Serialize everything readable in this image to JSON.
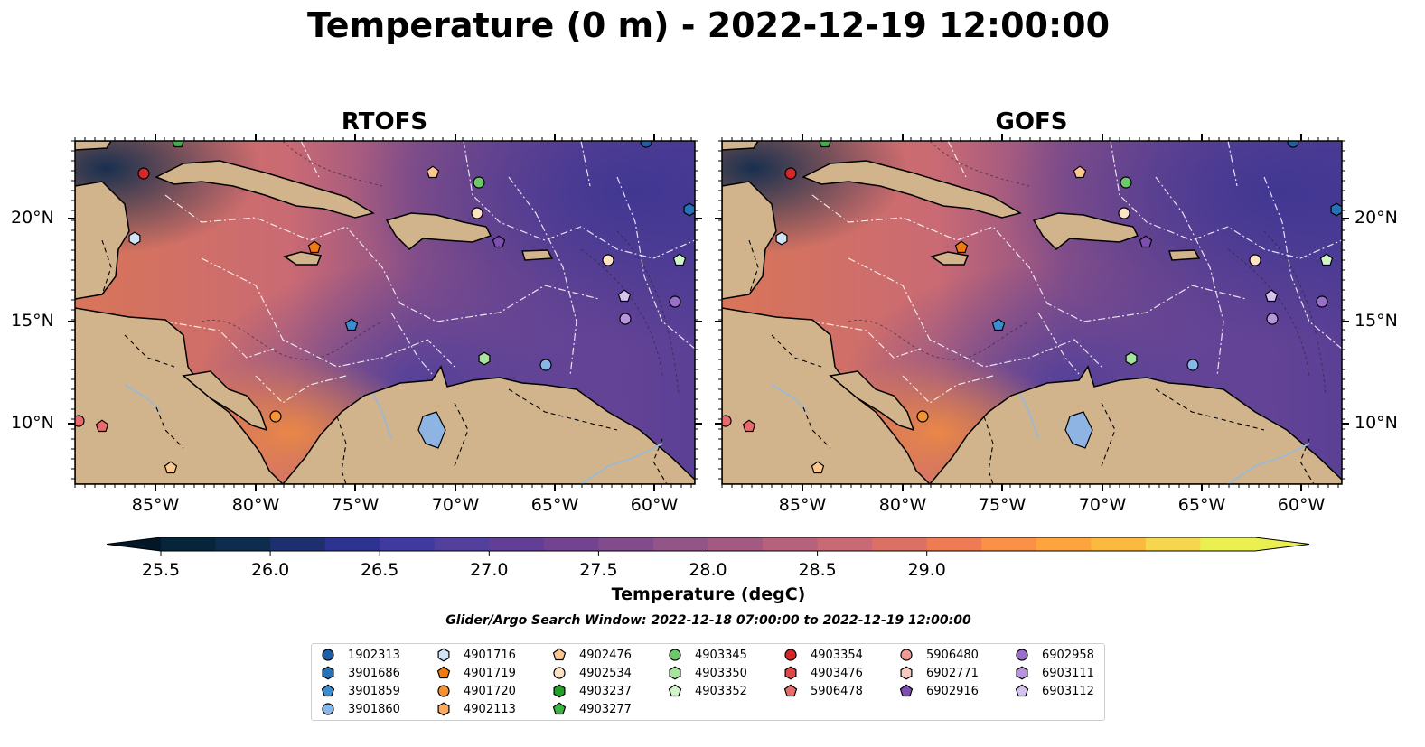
{
  "title": "Temperature (0 m) - 2022-12-19 12:00:00",
  "panels": [
    {
      "title": "RTOFS"
    },
    {
      "title": "GOFS"
    }
  ],
  "axes": {
    "x_ticks": [
      "85°W",
      "80°W",
      "75°W",
      "70°W",
      "65°W",
      "60°W"
    ],
    "y_ticks": [
      "20°N",
      "15°N",
      "10°N"
    ]
  },
  "colorbar": {
    "label": "Temperature (degC)",
    "ticks": [
      "25.5",
      "26.0",
      "26.5",
      "27.0",
      "27.5",
      "28.0",
      "28.5",
      "29.0"
    ],
    "colors": [
      "#07253a",
      "#0e2c4e",
      "#1d2f6f",
      "#2e3391",
      "#403a9e",
      "#52409c",
      "#623f95",
      "#72448f",
      "#824b8c",
      "#935488",
      "#a35a82",
      "#b7627d",
      "#c96976",
      "#db7065",
      "#ee7b53",
      "#fb9146",
      "#fea43f",
      "#fbb940",
      "#f6d64e",
      "#eaf050"
    ],
    "extend_min_color": "#021727",
    "extend_max_color": "#eaf050"
  },
  "search_window": "Glider/Argo Search Window: 2022-12-18 07:00:00 to 2022-12-19 12:00:00",
  "legend": [
    {
      "id": "1902313",
      "color": "#1f5fa8",
      "marker": "circle"
    },
    {
      "id": "3901686",
      "color": "#2672b8",
      "marker": "hexagon"
    },
    {
      "id": "3901859",
      "color": "#3a8dd0",
      "marker": "pentagon"
    },
    {
      "id": "3901860",
      "color": "#86b7e8",
      "marker": "circle"
    },
    {
      "id": "4901716",
      "color": "#cfe4f7",
      "marker": "hexagon"
    },
    {
      "id": "4901719",
      "color": "#f07a10",
      "marker": "pentagon"
    },
    {
      "id": "4901720",
      "color": "#f59130",
      "marker": "circle"
    },
    {
      "id": "4902113",
      "color": "#fbac60",
      "marker": "hexagon"
    },
    {
      "id": "4902476",
      "color": "#fdc890",
      "marker": "pentagon"
    },
    {
      "id": "4902534",
      "color": "#fde2c6",
      "marker": "circle"
    },
    {
      "id": "4903237",
      "color": "#22a02a",
      "marker": "hexagon"
    },
    {
      "id": "4903277",
      "color": "#3cb444",
      "marker": "pentagon"
    },
    {
      "id": "4903345",
      "color": "#6cc86a",
      "marker": "circle"
    },
    {
      "id": "4903350",
      "color": "#a6e39c",
      "marker": "hexagon"
    },
    {
      "id": "4903352",
      "color": "#cff5c8",
      "marker": "pentagon"
    },
    {
      "id": "4903354",
      "color": "#d62728",
      "marker": "circle"
    },
    {
      "id": "4903476",
      "color": "#e04848",
      "marker": "hexagon"
    },
    {
      "id": "5906478",
      "color": "#e96a6a",
      "marker": "pentagon"
    },
    {
      "id": "5906480",
      "color": "#f19a94",
      "marker": "circle"
    },
    {
      "id": "6902771",
      "color": "#f8c8c2",
      "marker": "hexagon"
    },
    {
      "id": "6902916",
      "color": "#7e4fb0",
      "marker": "pentagon"
    },
    {
      "id": "6902958",
      "color": "#9a6fcc",
      "marker": "circle"
    },
    {
      "id": "6903111",
      "color": "#b796de",
      "marker": "hexagon"
    },
    {
      "id": "6903112",
      "color": "#d6c2f0",
      "marker": "pentagon"
    }
  ],
  "map_colors": {
    "land": "#d2b48c",
    "lake": "#8eb4e3",
    "river": "#9fb8cf"
  }
}
